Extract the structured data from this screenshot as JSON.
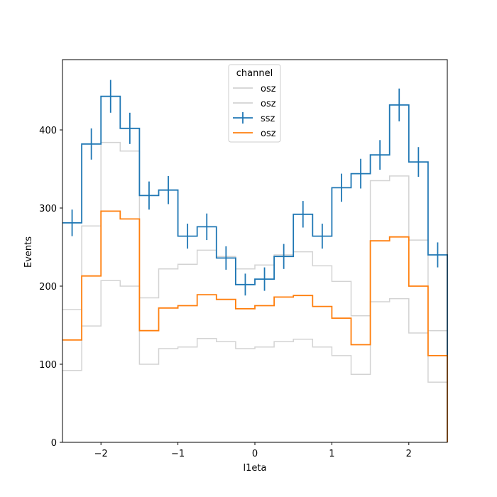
{
  "chart_data": {
    "type": "line",
    "xlabel": "l1eta",
    "ylabel": "Events",
    "xlim": [
      -2.5,
      2.5
    ],
    "ylim": [
      0,
      490
    ],
    "x_ticks": [
      -2,
      -1,
      0,
      1,
      2
    ],
    "x_tick_labels": [
      "−2",
      "−1",
      "0",
      "1",
      "2"
    ],
    "y_ticks": [
      0,
      100,
      200,
      300,
      400
    ],
    "y_tick_labels": [
      "0",
      "100",
      "200",
      "300",
      "400"
    ],
    "grid": false,
    "bin_edges": [
      -2.5,
      -2.25,
      -2.0,
      -1.75,
      -1.5,
      -1.25,
      -1.0,
      -0.75,
      -0.5,
      -0.25,
      0.0,
      0.25,
      0.5,
      0.75,
      1.0,
      1.25,
      1.5,
      1.75,
      2.0,
      2.25,
      2.5
    ],
    "legend": {
      "title": "channel",
      "position": "top-center",
      "entries": [
        "osz",
        "osz",
        "ssz",
        "osz"
      ]
    },
    "series": [
      {
        "name": "osz",
        "kind": "band-upper",
        "color": "#d3d3d3",
        "values": [
          170,
          277,
          384,
          373,
          185,
          222,
          228,
          246,
          238,
          222,
          227,
          240,
          244,
          226,
          206,
          162,
          335,
          341,
          259,
          143
        ]
      },
      {
        "name": "osz",
        "kind": "band-lower",
        "color": "#d3d3d3",
        "values": [
          92,
          149,
          207,
          200,
          100,
          120,
          122,
          133,
          129,
          120,
          122,
          129,
          132,
          122,
          111,
          87,
          180,
          184,
          140,
          77
        ]
      },
      {
        "name": "ssz",
        "kind": "data-with-errors",
        "color": "#1f77b4",
        "values": [
          281,
          382,
          443,
          402,
          316,
          323,
          264,
          276,
          236,
          202,
          209,
          238,
          292,
          264,
          326,
          344,
          368,
          432,
          359,
          240
        ],
        "errors": [
          17,
          20,
          21,
          20,
          18,
          18,
          16,
          17,
          15,
          14,
          15,
          16,
          17,
          16,
          18,
          19,
          19,
          21,
          19,
          16
        ]
      },
      {
        "name": "osz",
        "kind": "step",
        "color": "#ff7f0e",
        "values": [
          131,
          213,
          296,
          286,
          143,
          172,
          175,
          189,
          183,
          171,
          175,
          186,
          188,
          174,
          159,
          125,
          258,
          263,
          200,
          111
        ]
      }
    ]
  }
}
